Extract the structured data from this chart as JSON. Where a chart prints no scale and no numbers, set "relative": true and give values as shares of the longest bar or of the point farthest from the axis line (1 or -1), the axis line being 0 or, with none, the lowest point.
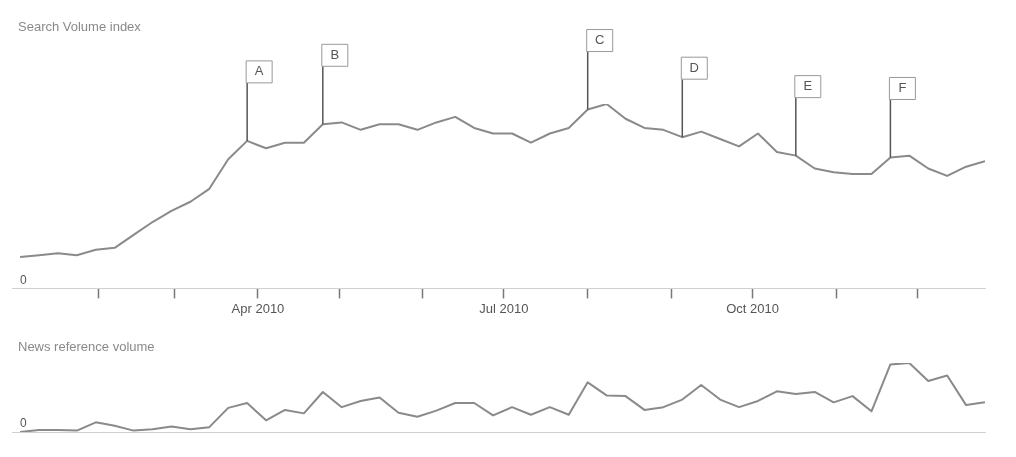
{
  "chart_data": [
    {
      "type": "line",
      "title": "Search Volume index",
      "relative": true,
      "tick_labels": "x",
      "marker": "none",
      "line_style": "solid",
      "x": [
        "2010-01-03",
        "2010-01-10",
        "2010-01-17",
        "2010-01-24",
        "2010-01-31",
        "2010-02-07",
        "2010-02-14",
        "2010-02-21",
        "2010-02-28",
        "2010-03-07",
        "2010-03-14",
        "2010-03-21",
        "2010-03-28",
        "2010-04-04",
        "2010-04-11",
        "2010-04-18",
        "2010-04-25",
        "2010-05-02",
        "2010-05-09",
        "2010-05-16",
        "2010-05-23",
        "2010-05-30",
        "2010-06-06",
        "2010-06-13",
        "2010-06-20",
        "2010-06-27",
        "2010-07-04",
        "2010-07-11",
        "2010-07-18",
        "2010-07-25",
        "2010-08-01",
        "2010-08-08",
        "2010-08-15",
        "2010-08-22",
        "2010-08-29",
        "2010-09-05",
        "2010-09-12",
        "2010-09-19",
        "2010-09-26",
        "2010-10-03",
        "2010-10-10",
        "2010-10-17",
        "2010-10-24",
        "2010-10-31",
        "2010-11-07",
        "2010-11-14",
        "2010-11-21",
        "2010-11-28",
        "2010-12-05",
        "2010-12-12",
        "2010-12-19",
        "2010-12-26"
      ],
      "series": [
        {
          "color": "#8a8a8a",
          "values": [
            0.17,
            0.18,
            0.19,
            0.18,
            0.21,
            0.22,
            0.29,
            0.36,
            0.42,
            0.47,
            0.54,
            0.7,
            0.8,
            0.76,
            0.79,
            0.79,
            0.89,
            0.9,
            0.86,
            0.89,
            0.89,
            0.86,
            0.9,
            0.93,
            0.87,
            0.84,
            0.84,
            0.79,
            0.84,
            0.87,
            0.97,
            1,
            0.92,
            0.87,
            0.86,
            0.82,
            0.85,
            0.81,
            0.77,
            0.84,
            0.74,
            0.72,
            0.65,
            0.63,
            0.62,
            0.62,
            0.71,
            0.72,
            0.65,
            0.61,
            0.66,
            0.69
          ]
        }
      ],
      "xlim": [
        "2009-12-31",
        "2010-12-26"
      ],
      "xticks": [
        {
          "value": "2010-02-01",
          "label": null
        },
        {
          "value": "2010-03-01",
          "label": null
        },
        {
          "value": "2010-04-01",
          "label": "Apr 2010"
        },
        {
          "value": "2010-05-01",
          "label": null
        },
        {
          "value": "2010-06-01",
          "label": null
        },
        {
          "value": "2010-07-01",
          "label": "Jul 2010"
        },
        {
          "value": "2010-08-01",
          "label": null
        },
        {
          "value": "2010-09-01",
          "label": null
        },
        {
          "value": "2010-10-01",
          "label": "Oct 2010"
        },
        {
          "value": "2010-11-01",
          "label": null
        },
        {
          "value": "2010-12-01",
          "label": null
        }
      ],
      "annotations": [
        "0",
        {
          "text": "A",
          "x": "2010-03-28",
          "y": 0.8
        },
        {
          "text": "B",
          "x": "2010-04-25",
          "y": 0.89
        },
        {
          "text": "C",
          "x": "2010-08-01",
          "y": 0.97
        },
        {
          "text": "D",
          "x": "2010-09-05",
          "y": 0.82
        },
        {
          "text": "E",
          "x": "2010-10-17",
          "y": 0.72
        },
        {
          "text": "F",
          "x": "2010-11-21",
          "y": 0.71
        }
      ]
    },
    {
      "type": "line",
      "title": "News reference volume",
      "relative": true,
      "tick_labels": false,
      "marker": "none",
      "line_style": "solid",
      "x": [
        "2010-01-03",
        "2010-01-10",
        "2010-01-17",
        "2010-01-24",
        "2010-01-31",
        "2010-02-07",
        "2010-02-14",
        "2010-02-21",
        "2010-02-28",
        "2010-03-07",
        "2010-03-14",
        "2010-03-21",
        "2010-03-28",
        "2010-04-04",
        "2010-04-11",
        "2010-04-18",
        "2010-04-25",
        "2010-05-02",
        "2010-05-09",
        "2010-05-16",
        "2010-05-23",
        "2010-05-30",
        "2010-06-06",
        "2010-06-13",
        "2010-06-20",
        "2010-06-27",
        "2010-07-04",
        "2010-07-11",
        "2010-07-18",
        "2010-07-25",
        "2010-08-01",
        "2010-08-08",
        "2010-08-15",
        "2010-08-22",
        "2010-08-29",
        "2010-09-05",
        "2010-09-12",
        "2010-09-19",
        "2010-09-26",
        "2010-10-03",
        "2010-10-10",
        "2010-10-17",
        "2010-10-24",
        "2010-10-31",
        "2010-11-07",
        "2010-11-14",
        "2010-11-21",
        "2010-11-28",
        "2010-12-05",
        "2010-12-12",
        "2010-12-19",
        "2010-12-26"
      ],
      "series": [
        {
          "color": "#8a8a8a",
          "values": [
            0,
            0.03,
            0.03,
            0.02,
            0.14,
            0.09,
            0.02,
            0.04,
            0.08,
            0.04,
            0.07,
            0.35,
            0.42,
            0.17,
            0.32,
            0.27,
            0.58,
            0.36,
            0.45,
            0.5,
            0.28,
            0.22,
            0.31,
            0.42,
            0.42,
            0.24,
            0.36,
            0.25,
            0.36,
            0.25,
            0.72,
            0.53,
            0.52,
            0.32,
            0.36,
            0.47,
            0.68,
            0.47,
            0.36,
            0.45,
            0.59,
            0.55,
            0.58,
            0.43,
            0.52,
            0.3,
            0.98,
            1,
            0.74,
            0.82,
            0.39,
            0.43
          ]
        }
      ],
      "xlim": [
        "2009-12-31",
        "2010-12-26"
      ],
      "annotations": [
        "0"
      ]
    }
  ]
}
